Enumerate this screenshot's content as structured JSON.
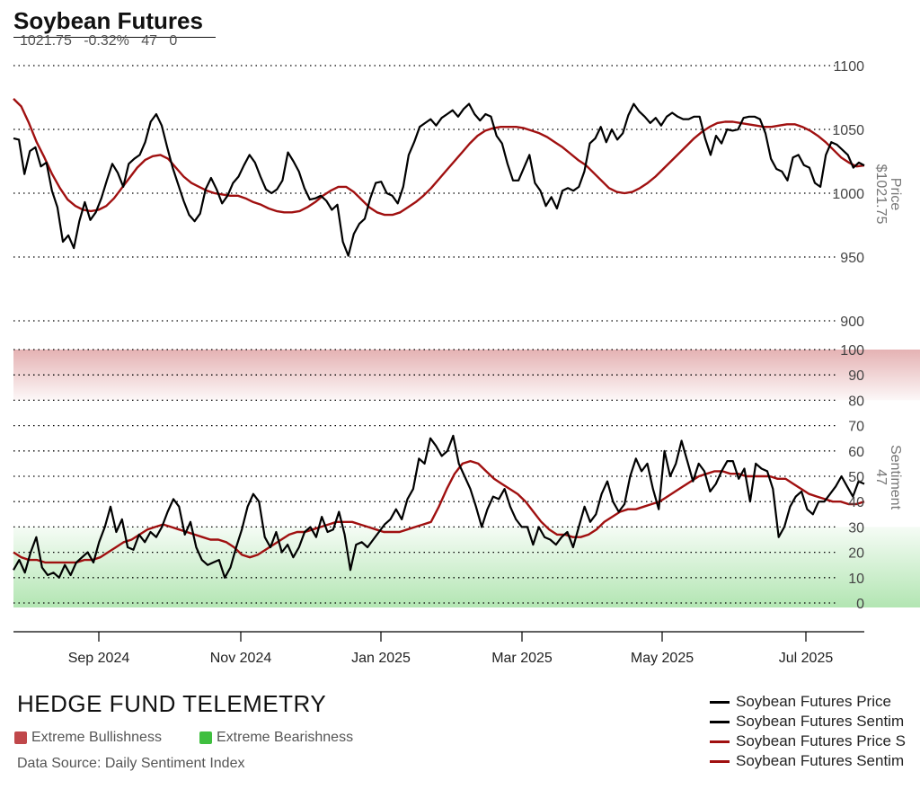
{
  "header": {
    "title": "Soybean Futures",
    "stats": [
      "1021.75",
      "-0.32%",
      "47",
      "0"
    ]
  },
  "footer": {
    "brand": "HEDGE FUND TELEMETRY",
    "bull_label": "Extreme Bullishness",
    "bear_label": "Extreme Bearishness",
    "source": "Data Source: Daily Sentiment Index"
  },
  "colors": {
    "price": "#000000",
    "average": "#a01010",
    "bull_zone": "#c0474a",
    "bear_zone": "#3fbf3f",
    "grid": "#000000",
    "axis_text": "#444444"
  },
  "chart_data": [
    {
      "type": "line",
      "panel": "price",
      "ylabel": "Price",
      "current_label": "$1021.75",
      "ylim": [
        900,
        1100
      ],
      "yticks": [
        900,
        950,
        1000,
        1050,
        1100
      ],
      "grid": true,
      "series": [
        {
          "name": "Soybean Futures Price",
          "color": "#000000",
          "values": [
            1043,
            1042,
            1015,
            1033,
            1036,
            1021,
            1024,
            1002,
            989,
            962,
            967,
            957,
            978,
            993,
            979,
            985,
            996,
            1010,
            1023,
            1016,
            1005,
            1023,
            1027,
            1030,
            1040,
            1056,
            1062,
            1053,
            1036,
            1020,
            1007,
            994,
            983,
            978,
            984,
            1003,
            1012,
            1003,
            992,
            998,
            1008,
            1013,
            1022,
            1030,
            1024,
            1013,
            1003,
            1000,
            1003,
            1010,
            1032,
            1025,
            1017,
            1004,
            995,
            996,
            998,
            994,
            987,
            991,
            962,
            951,
            968,
            976,
            980,
            996,
            1008,
            1009,
            1000,
            998,
            992,
            1005,
            1030,
            1040,
            1052,
            1055,
            1058,
            1053,
            1059,
            1062,
            1065,
            1060,
            1066,
            1070,
            1062,
            1057,
            1062,
            1060,
            1045,
            1039,
            1023,
            1010,
            1010,
            1020,
            1030,
            1008,
            1002,
            990,
            997,
            988,
            1002,
            1004,
            1002,
            1005,
            1017,
            1039,
            1043,
            1052,
            1040,
            1050,
            1042,
            1047,
            1061,
            1070,
            1064,
            1060,
            1055,
            1059,
            1053,
            1060,
            1063,
            1060,
            1058,
            1058,
            1060,
            1060,
            1043,
            1030,
            1045,
            1039,
            1050,
            1049,
            1050,
            1059,
            1060,
            1060,
            1058,
            1047,
            1027,
            1019,
            1017,
            1010,
            1028,
            1030,
            1022,
            1020,
            1008,
            1005,
            1030,
            1040,
            1038,
            1034,
            1030,
            1020,
            1024,
            1021.75
          ]
        },
        {
          "name": "Soybean Futures Price S",
          "color": "#a01010",
          "values": [
            1074,
            1068,
            1055,
            1040,
            1028,
            1015,
            1004,
            995,
            990,
            987,
            986,
            987,
            990,
            996,
            1004,
            1012,
            1020,
            1026,
            1029,
            1030,
            1027,
            1020,
            1013,
            1008,
            1005,
            1002,
            1000,
            999,
            998,
            998,
            996,
            993,
            991,
            988,
            986,
            985,
            985,
            986,
            989,
            993,
            998,
            1002,
            1005,
            1005,
            1001,
            995,
            989,
            985,
            983,
            983,
            985,
            989,
            993,
            998,
            1004,
            1011,
            1018,
            1025,
            1032,
            1039,
            1045,
            1049,
            1051,
            1052,
            1052,
            1052,
            1051,
            1049,
            1047,
            1044,
            1040,
            1036,
            1031,
            1026,
            1022,
            1016,
            1010,
            1004,
            1001,
            1000,
            1001,
            1004,
            1008,
            1013,
            1019,
            1025,
            1031,
            1037,
            1043,
            1048,
            1052,
            1055,
            1056,
            1056,
            1055,
            1054,
            1053,
            1052,
            1052,
            1053,
            1054,
            1054,
            1052,
            1049,
            1045,
            1040,
            1034,
            1028,
            1024,
            1021,
            1021.75
          ]
        }
      ]
    },
    {
      "type": "line",
      "panel": "sentiment",
      "ylabel": "Sentiment",
      "current_label": "47",
      "ylim": [
        0,
        100
      ],
      "yticks": [
        0,
        10,
        20,
        30,
        40,
        50,
        60,
        70,
        80,
        90,
        100
      ],
      "zones": [
        {
          "name": "Extreme Bullishness",
          "from": 80,
          "to": 100
        },
        {
          "name": "Extreme Bearishness",
          "from": 0,
          "to": 30
        }
      ],
      "xticks": [
        "Sep 2024",
        "Nov 2024",
        "Jan 2025",
        "Mar 2025",
        "May 2025",
        "Jul 2025"
      ],
      "grid": true,
      "series": [
        {
          "name": "Soybean Futures Sentim",
          "color": "#000000",
          "values": [
            13,
            17,
            12,
            20,
            26,
            14,
            11,
            12,
            10,
            15,
            11,
            16,
            18,
            20,
            16,
            24,
            30,
            38,
            28,
            33,
            22,
            21,
            27,
            24,
            28,
            26,
            30,
            36,
            41,
            38,
            27,
            32,
            22,
            17,
            15,
            16,
            17,
            10,
            14,
            22,
            29,
            38,
            43,
            40,
            26,
            22,
            28,
            20,
            23,
            18,
            22,
            28,
            30,
            26,
            34,
            28,
            29,
            36,
            27,
            13,
            23,
            24,
            22,
            25,
            28,
            31,
            33,
            37,
            33,
            41,
            45,
            57,
            55,
            65,
            62,
            58,
            60,
            66,
            55,
            50,
            45,
            38,
            30,
            37,
            42,
            41,
            45,
            38,
            33,
            30,
            30,
            23,
            30,
            26,
            25,
            23,
            26,
            28,
            22,
            30,
            38,
            32,
            35,
            43,
            48,
            40,
            36,
            39,
            50,
            57,
            52,
            55,
            45,
            37,
            60,
            50,
            55,
            64,
            56,
            48,
            55,
            52,
            44,
            47,
            52,
            56,
            56,
            49,
            53,
            40,
            55,
            53,
            52,
            45,
            26,
            30,
            38,
            42,
            44,
            37,
            35,
            40,
            40,
            43,
            46,
            50,
            46,
            42,
            48,
            47
          ]
        },
        {
          "name": "Soybean Futures Sentim",
          "color": "#a01010",
          "values": [
            20,
            18,
            17,
            17,
            16,
            16,
            16,
            16,
            16,
            17,
            17,
            18,
            20,
            22,
            24,
            25,
            27,
            29,
            30,
            31,
            30,
            29,
            28,
            27,
            26,
            25,
            25,
            24,
            22,
            19,
            18,
            19,
            21,
            23,
            25,
            27,
            28,
            28,
            29,
            30,
            31,
            32,
            32,
            32,
            31,
            30,
            29,
            28,
            28,
            28,
            29,
            30,
            31,
            32,
            38,
            45,
            51,
            55,
            56,
            55,
            52,
            49,
            47,
            45,
            43,
            40,
            36,
            32,
            29,
            27,
            27,
            26,
            26,
            27,
            29,
            32,
            34,
            36,
            37,
            37,
            38,
            39,
            40,
            42,
            44,
            46,
            48,
            50,
            51,
            52,
            52,
            51,
            51,
            50,
            50,
            50,
            50,
            49,
            49,
            47,
            45,
            43,
            42,
            41,
            40,
            40,
            39,
            39,
            40
          ]
        }
      ]
    }
  ]
}
